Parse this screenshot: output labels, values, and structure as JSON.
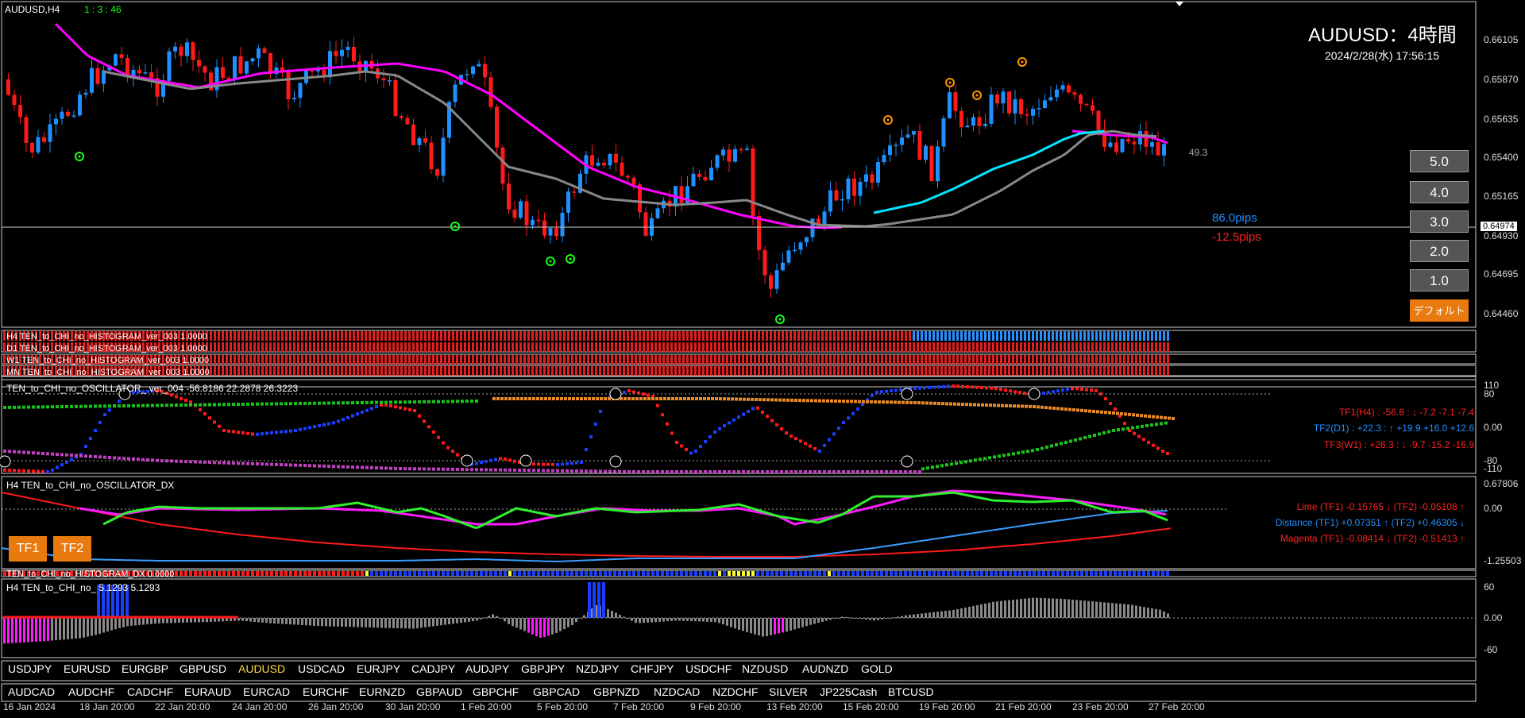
{
  "window": {
    "symbol_tf": "AUDUSD,H4",
    "timer": "1 : 3 : 46",
    "title": "AUDUSD：4時間",
    "datetime": "2024/2/28(水) 17:56:15"
  },
  "price_axis": [
    "0.66105",
    "0.65870",
    "0.65635",
    "0.65400",
    "0.65165",
    "0.64930",
    "0.64695",
    "0.64460"
  ],
  "current_price": "0.64974",
  "annotations": {
    "pips_up": "86.0pips",
    "pips_down": "-12.5pips",
    "ma_value": "49.3"
  },
  "colors": {
    "bull": "#1e90ff",
    "bear": "#ff1a1a",
    "ma_magenta": "#ff00ff",
    "ma_gray": "#888888",
    "ma_cyan": "#00e5ff",
    "accent_orange": "#e87a10"
  },
  "side_buttons": [
    "5.0",
    "4.0",
    "3.0",
    "2.0",
    "1.0",
    "デフォルト"
  ],
  "histogram_rows": [
    "H4 TEN_to_CHI_no_HISTOGRAM_ver_003 1.0000",
    "D1 TEN_to_CHI_no_HISTOGRAM_ver_003 1.0000",
    "W1 TEN_to_CHI_no_HISTOGRAM_ver_003 1.0000",
    "MN TEN_to_CHI_no_HISTOGRAM_ver_003 1.0000"
  ],
  "osc": {
    "header": "TEN_to_CHI_no_OSCILLATOR_ ver_004 -56.8186 22.2878 26.3223",
    "axis": [
      "110",
      "80",
      "0.00",
      "-80",
      "-110"
    ],
    "tf1": "TF1(H4) : -56.8 : ↓ -7.2 -7.1 -7.4",
    "tf2": "TF2(D1) : +22.3 : ↑ +19.9 +16.0 +12.6",
    "tf3": "TF3(W1) : +26.3 : ↓ -9.7 -15.2 -16.9"
  },
  "dx": {
    "header": "H4 TEN_to_CHI_no_OSCILLATOR_DX",
    "axis": [
      "0.67806",
      "0.00",
      "-1.25503"
    ],
    "lime": "Lime (TF1) -0.15765 ↓ (TF2) -0.05108 ↑",
    "distance": "Distance (TF1) +0.07351 ↑ (TF2) +0.46305 ↓",
    "magenta": "Magenta (TF1) -0.08414 ↓ (TF2) -0.51413 ↑",
    "tf1_button": "TF1",
    "tf2_button": "TF2"
  },
  "hist_dx_label": "TEN_to_CHI_no_HISTOGRAM_DX 0.0000",
  "h4_hist": {
    "header": "H4 TEN_to_CHI_no_ 5.1293 5.1293",
    "axis": [
      "60",
      "0.00",
      "-60"
    ]
  },
  "symbols_row1": [
    "USDJPY",
    "EURUSD",
    "EURGBP",
    "GBPUSD",
    "AUDUSD",
    "USDCAD",
    "EURJPY",
    "CADJPY",
    "AUDJPY",
    "GBPJPY",
    "NZDJPY",
    "CHFJPY",
    "USDCHF",
    "NZDUSD",
    "AUDNZD",
    "GOLD"
  ],
  "symbols_row1_active": "AUDUSD",
  "symbols_row2": [
    "AUDCAD",
    "AUDCHF",
    "CADCHF",
    "EURAUD",
    "EURCAD",
    "EURCHF",
    "EURNZD",
    "GBPAUD",
    "GBPCHF",
    "GBPCAD",
    "GBPNZD",
    "NZDCAD",
    "NZDCHF",
    "SILVER",
    "JP225Cash",
    "BTCUSD"
  ],
  "time_axis": [
    "16 Jan 2024",
    "18 Jan 20:00",
    "22 Jan 20:00",
    "24 Jan 20:00",
    "26 Jan 20:00",
    "30 Jan 20:00",
    "1 Feb 20:00",
    "5 Feb 20:00",
    "7 Feb 20:00",
    "9 Feb 20:00",
    "13 Feb 20:00",
    "15 Feb 20:00",
    "19 Feb 20:00",
    "21 Feb 20:00",
    "23 Feb 20:00",
    "27 Feb 20:00"
  ]
}
